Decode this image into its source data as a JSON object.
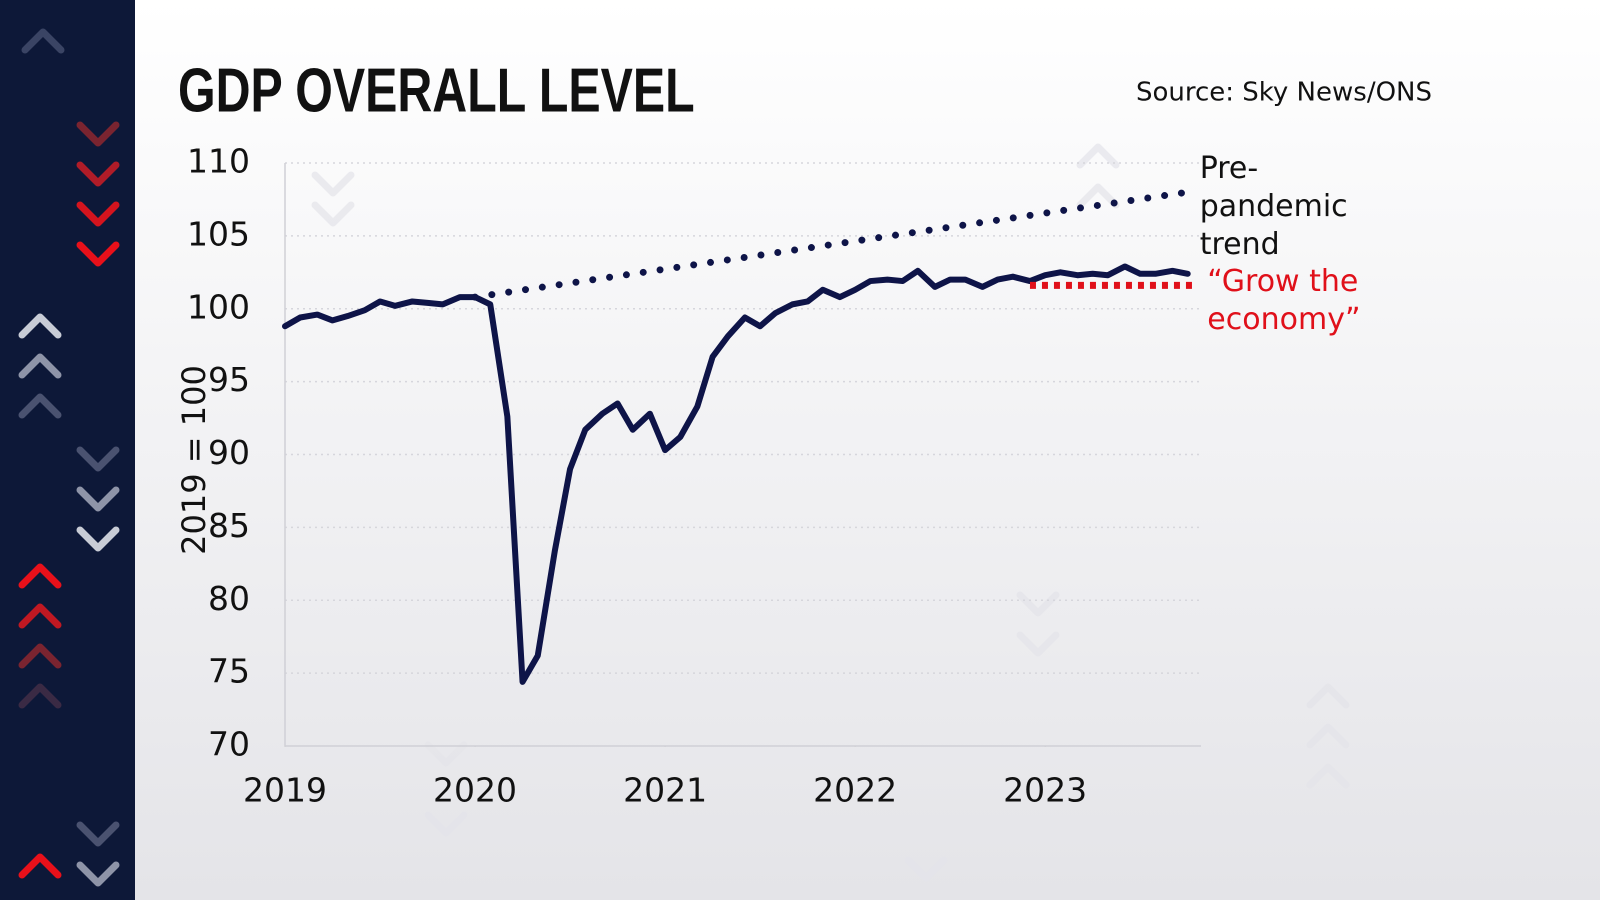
{
  "chart_data": {
    "type": "line",
    "title": "GDP OVERALL LEVEL",
    "source": "Source: Sky News/ONS",
    "y_label": "2019 = 100",
    "xlim": [
      2019,
      2023.82
    ],
    "xticks": [
      2019,
      2020,
      2021,
      2022,
      2023
    ],
    "ylim": [
      70,
      110
    ],
    "yticks": [
      70,
      75,
      80,
      85,
      90,
      95,
      100,
      105,
      110
    ],
    "grid": true,
    "series": [
      {
        "color": "#0e1448",
        "style": "solid",
        "x": [
          2019.0,
          2019.08,
          2019.17,
          2019.25,
          2019.33,
          2019.42,
          2019.5,
          2019.58,
          2019.67,
          2019.75,
          2019.83,
          2019.92,
          2020.0,
          2020.08,
          2020.17,
          2020.25,
          2020.33,
          2020.42,
          2020.5,
          2020.58,
          2020.67,
          2020.75,
          2020.83,
          2020.92,
          2021.0,
          2021.08,
          2021.17,
          2021.25,
          2021.33,
          2021.42,
          2021.5,
          2021.58,
          2021.67,
          2021.75,
          2021.83,
          2021.92,
          2022.0,
          2022.08,
          2022.17,
          2022.25,
          2022.33,
          2022.42,
          2022.5,
          2022.58,
          2022.67,
          2022.75,
          2022.83,
          2022.92,
          2023.0,
          2023.08,
          2023.17,
          2023.25,
          2023.33,
          2023.42,
          2023.5,
          2023.58,
          2023.67,
          2023.75
        ],
        "values": [
          98.8,
          99.4,
          99.6,
          99.2,
          99.5,
          99.9,
          100.5,
          100.2,
          100.5,
          100.4,
          100.3,
          100.8,
          100.8,
          100.3,
          92.6,
          74.4,
          76.2,
          83.4,
          89.0,
          91.7,
          92.8,
          93.5,
          91.7,
          92.8,
          90.3,
          91.2,
          93.3,
          96.7,
          98.1,
          99.4,
          98.8,
          99.7,
          100.3,
          100.5,
          101.3,
          100.8,
          101.3,
          101.9,
          102.0,
          101.9,
          102.6,
          101.5,
          102.0,
          102.0,
          101.5,
          102.0,
          102.2,
          101.9,
          102.3,
          102.5,
          102.3,
          102.4,
          102.3,
          102.9,
          102.4,
          102.4,
          102.6,
          102.4
        ]
      },
      {
        "name": "Pre-pandemic trend",
        "color": "#0e1448",
        "style": "dotted",
        "label_color": "#111111",
        "x": [
          2020.0,
          2023.75
        ],
        "values": [
          100.8,
          108.0
        ]
      },
      {
        "name": "“Grow the economy”",
        "color": "#e0101a",
        "style": "dotted",
        "label_color": "#e0101a",
        "x": [
          2022.92,
          2023.79
        ],
        "values": [
          101.6,
          101.6
        ]
      }
    ]
  }
}
